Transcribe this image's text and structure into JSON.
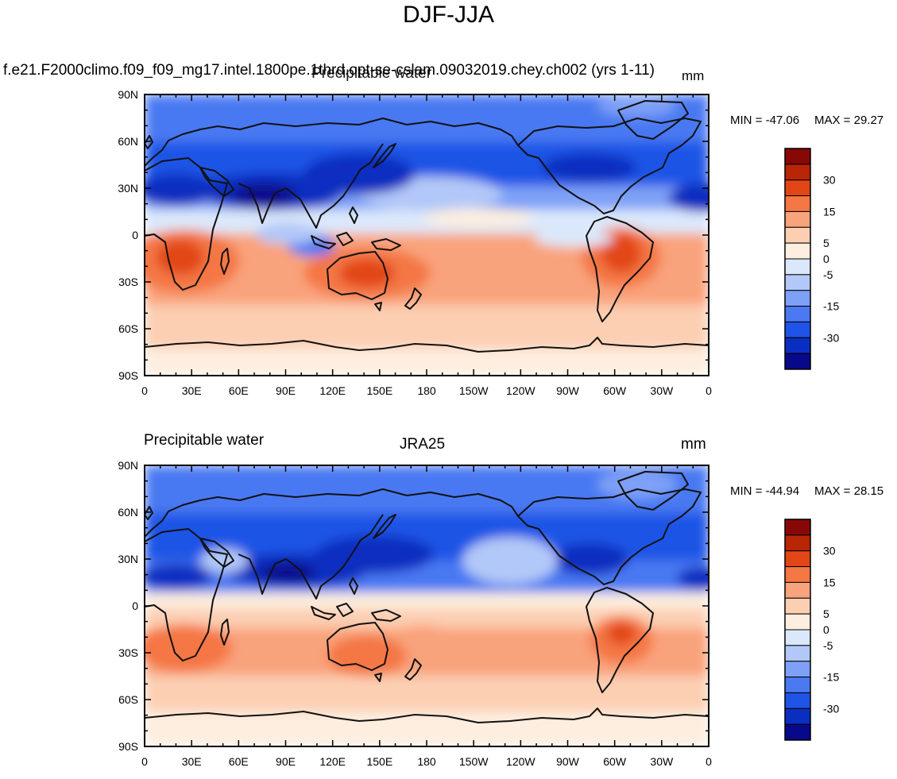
{
  "title": "DJF-JJA",
  "panels": [
    {
      "left_label": "",
      "center_label": "f.e21.F2000climo.f09_f09_mg17.intel.1800pe.1thrd.opt-se-cslam.09032019.chey.ch002 (yrs 1-11)",
      "overlap_label": "Precipitable water",
      "units": "mm",
      "min_label": "MIN = -47.06",
      "max_label": "MAX =  29.27"
    },
    {
      "left_label": "Precipitable water",
      "center_label": "JRA25",
      "units": "mm",
      "min_label": "MIN = -44.94",
      "max_label": "MAX =  28.15"
    }
  ],
  "lat_ticks": [
    "90N",
    "60N",
    "30N",
    "0",
    "30S",
    "60S",
    "90S"
  ],
  "lon_ticks": [
    "0",
    "30E",
    "60E",
    "90E",
    "120E",
    "150E",
    "180",
    "150W",
    "120W",
    "90W",
    "60W",
    "30W",
    "0"
  ],
  "colorbar": {
    "colors": [
      "#08088a",
      "#0a2fc0",
      "#1f54e6",
      "#4a79f2",
      "#7ea0f6",
      "#b2c8f8",
      "#dbe8fb",
      "#fdeedf",
      "#fccfb3",
      "#f9a37c",
      "#f47744",
      "#e24616",
      "#b82606",
      "#880808"
    ],
    "labels": [
      "-30",
      "-15",
      "-5",
      "0",
      "5",
      "15",
      "30"
    ]
  }
}
